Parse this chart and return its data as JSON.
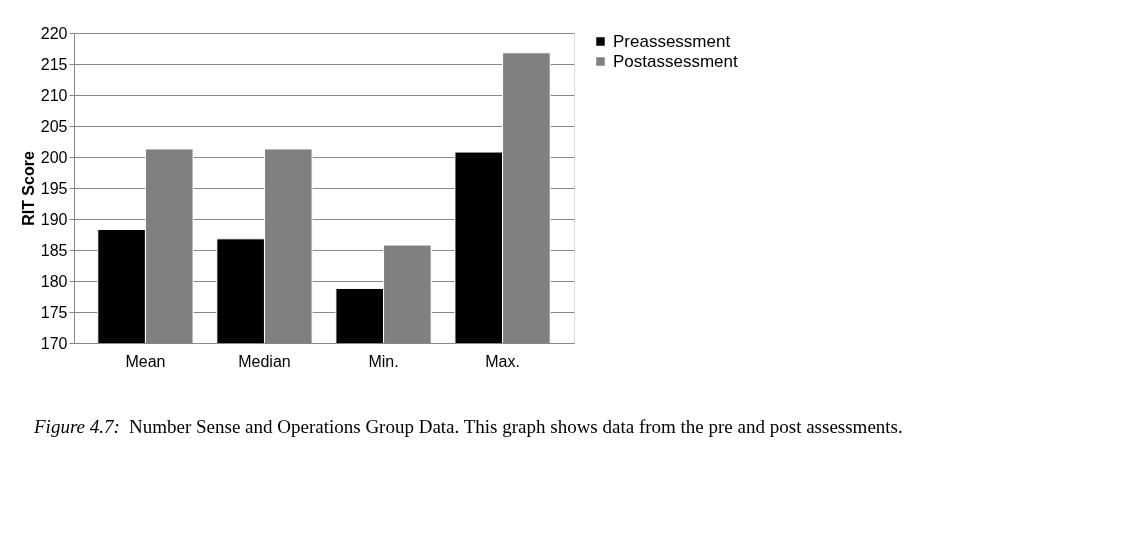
{
  "chart_data": {
    "type": "bar",
    "ylabel": "RIT Score",
    "categories": [
      "Mean",
      "Median",
      "Min.",
      "Max."
    ],
    "series": [
      {
        "name": "Preassessment",
        "color": "#000000",
        "values": [
          188.3,
          186.8,
          178.8,
          200.8
        ]
      },
      {
        "name": "Postassessment",
        "color": "#808080",
        "values": [
          201.3,
          201.3,
          185.8,
          216.8
        ]
      }
    ],
    "ylim": [
      170,
      220
    ],
    "yticks": [
      170,
      175,
      180,
      185,
      190,
      195,
      200,
      205,
      210,
      215,
      220
    ],
    "grid": "y",
    "legend": "right",
    "annotations": [
      "Figure 4.7:",
      "Number Sense and Operations Group Data. This graph shows data from the pre and post assessments."
    ]
  }
}
